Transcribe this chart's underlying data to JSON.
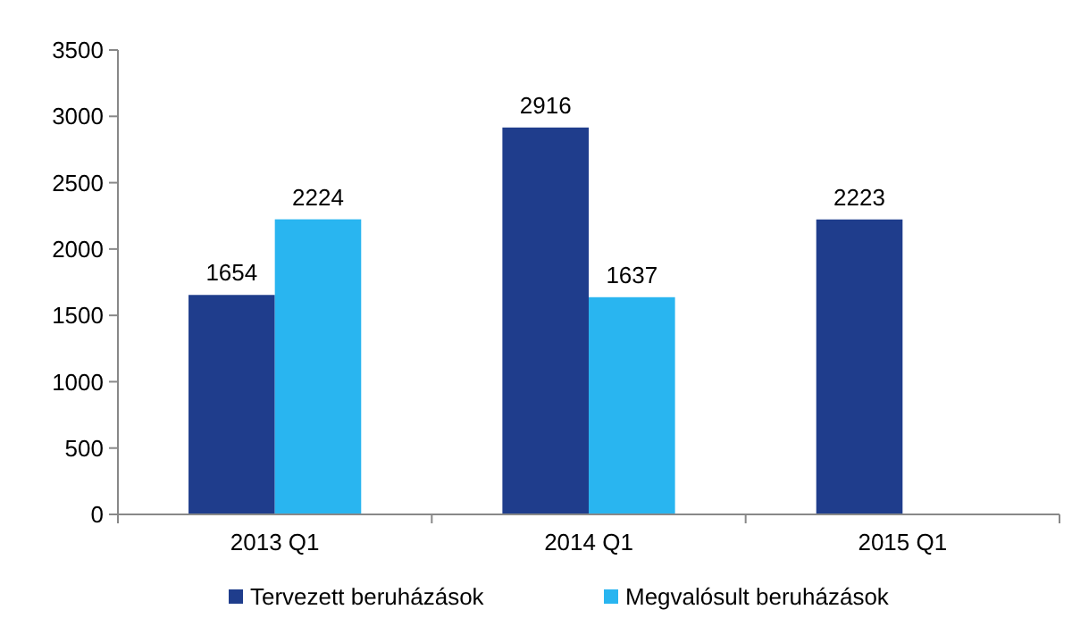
{
  "chart_data": {
    "type": "bar",
    "categories": [
      "2013 Q1",
      "2014 Q1",
      "2015 Q1"
    ],
    "series": [
      {
        "name": "Tervezett beruházások",
        "color": "#1f3d8c",
        "values": [
          1654,
          2916,
          2223
        ]
      },
      {
        "name": "Megvalósult beruházások",
        "color": "#29b5f0",
        "values": [
          2224,
          1637,
          null
        ]
      }
    ],
    "ylim": [
      0,
      3500
    ],
    "yticks": [
      0,
      500,
      1000,
      1500,
      2000,
      2500,
      3000,
      3500
    ],
    "grid": false,
    "legend": "bottom",
    "data_labels": true
  }
}
